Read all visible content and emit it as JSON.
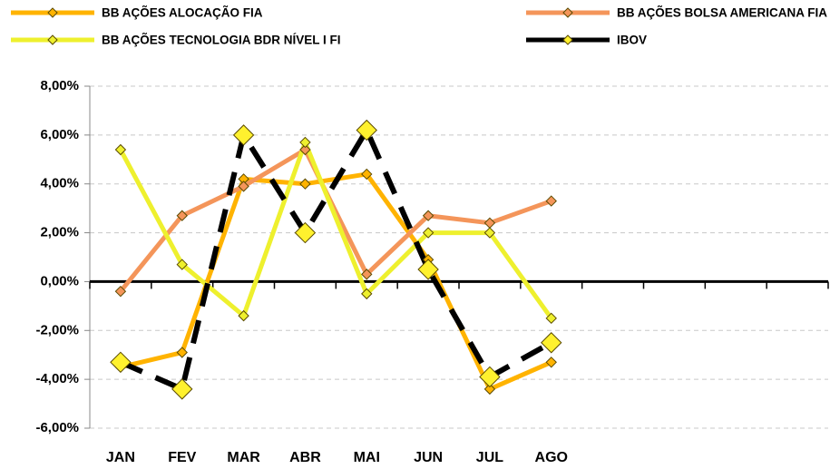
{
  "chart_data": {
    "type": "line",
    "categories": [
      "JAN",
      "FEV",
      "MAR",
      "ABR",
      "MAI",
      "JUN",
      "JUL",
      "AGO",
      null,
      null,
      null,
      null
    ],
    "series": [
      {
        "name": "BB AÇÕES ALOCAÇÃO FIA",
        "color": "#FFB300",
        "values": [
          -3.5,
          -2.9,
          4.2,
          4.0,
          4.4,
          0.9,
          -4.4,
          -3.3,
          null,
          null,
          null,
          null
        ]
      },
      {
        "name": "BB AÇÕES BOLSA AMERICANA FIA",
        "color": "#F4955A",
        "values": [
          -0.4,
          2.7,
          3.9,
          5.4,
          0.3,
          2.7,
          2.4,
          3.3,
          null,
          null,
          null,
          null
        ]
      },
      {
        "name": "BB AÇÕES TECNOLOGIA BDR NÍVEL I FI",
        "color": "#EEF02E",
        "values": [
          5.4,
          0.7,
          -1.4,
          5.7,
          -0.5,
          2.0,
          2.0,
          -1.5,
          null,
          null,
          null,
          null
        ]
      },
      {
        "name": "IBOV",
        "color": "#000000",
        "values": [
          -3.3,
          -4.4,
          6.0,
          2.0,
          6.2,
          0.5,
          -3.9,
          -2.5,
          null,
          null,
          null,
          null
        ]
      }
    ],
    "ylim": [
      -6,
      8
    ],
    "yticks": [
      {
        "value": -6,
        "label": "-6,00%"
      },
      {
        "value": -4,
        "label": "-4,00%"
      },
      {
        "value": -2,
        "label": "-2,00%"
      },
      {
        "value": 0,
        "label": "0,00%"
      },
      {
        "value": 2,
        "label": "2,00%"
      },
      {
        "value": 4,
        "label": "4,00%"
      },
      {
        "value": 6,
        "label": "6,00%"
      },
      {
        "value": 8,
        "label": "8,00%"
      }
    ],
    "grid": true
  }
}
